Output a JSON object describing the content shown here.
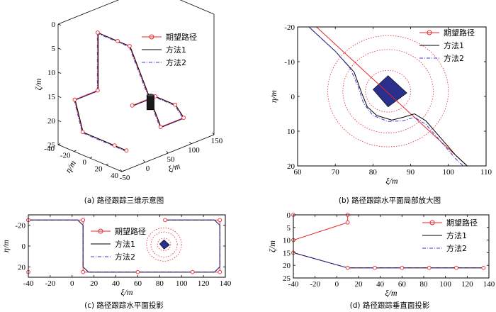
{
  "legend": {
    "desired": "期望路径",
    "method1": "方法1",
    "method2": "方法2"
  },
  "colors": {
    "desired": "#e8242a",
    "method1": "#000000",
    "method2": "#3b3bd6",
    "obstacle": "#2a2f8c"
  },
  "chart_data": [
    {
      "id": "a",
      "type": "line3d",
      "caption": "(a) 路径跟踪三维示意图",
      "xlabel": "ξ/m",
      "ylabel": "η/m",
      "zlabel": "ζ/m",
      "xticks": [
        -50,
        0,
        50,
        100,
        150
      ],
      "yticks": [
        -40,
        -20,
        0,
        20,
        40
      ],
      "zticks": [
        0,
        5,
        10,
        15,
        20,
        25
      ],
      "desired_path": [
        {
          "xi": -40,
          "eta": 40,
          "zeta": 21
        },
        {
          "xi": -40,
          "eta": 25,
          "zeta": 21
        },
        {
          "xi": -40,
          "eta": -15,
          "zeta": 21
        },
        {
          "xi": -40,
          "eta": -25,
          "zeta": 15
        },
        {
          "xi": 10,
          "eta": -25,
          "zeta": 15
        },
        {
          "xi": 10,
          "eta": -25,
          "zeta": 3
        },
        {
          "xi": 10,
          "eta": 0,
          "zeta": 3
        },
        {
          "xi": 10,
          "eta": 15,
          "zeta": 3
        },
        {
          "xi": 60,
          "eta": 25,
          "zeta": 21
        },
        {
          "xi": 110,
          "eta": 25,
          "zeta": 21
        },
        {
          "xi": 135,
          "eta": 0,
          "zeta": 21
        },
        {
          "xi": 135,
          "eta": -25,
          "zeta": 21
        },
        {
          "xi": 85,
          "eta": -25,
          "zeta": 21
        }
      ]
    },
    {
      "id": "b",
      "type": "line",
      "caption": "(b) 路径跟踪水平面局部放大图",
      "xlabel": "ξ/m",
      "ylabel": "η/m",
      "xlim": [
        60,
        110
      ],
      "ylim": [
        -20,
        20
      ],
      "y_inverted": true,
      "xticks": [
        60,
        70,
        80,
        90,
        100,
        110
      ],
      "yticks": [
        -20,
        -10,
        0,
        10,
        20
      ],
      "desired_path": [
        {
          "x": 60,
          "y": -25
        },
        {
          "x": 110,
          "y": 25
        }
      ],
      "method1": [
        {
          "x": 63,
          "y": -20
        },
        {
          "x": 70,
          "y": -13
        },
        {
          "x": 75,
          "y": -7
        },
        {
          "x": 77,
          "y": -1
        },
        {
          "x": 78.5,
          "y": 3
        },
        {
          "x": 81,
          "y": 5.5
        },
        {
          "x": 85,
          "y": 6.8
        },
        {
          "x": 88,
          "y": 6
        },
        {
          "x": 91,
          "y": 5
        },
        {
          "x": 94,
          "y": 7
        },
        {
          "x": 98,
          "y": 12
        },
        {
          "x": 102,
          "y": 17
        },
        {
          "x": 105,
          "y": 20
        }
      ],
      "method2": [
        {
          "x": 63,
          "y": -20
        },
        {
          "x": 70,
          "y": -13
        },
        {
          "x": 74,
          "y": -8
        },
        {
          "x": 76,
          "y": -3
        },
        {
          "x": 77.5,
          "y": 2
        },
        {
          "x": 80,
          "y": 5.5
        },
        {
          "x": 84,
          "y": 7.2
        },
        {
          "x": 88,
          "y": 7
        },
        {
          "x": 91,
          "y": 6
        },
        {
          "x": 94,
          "y": 8
        },
        {
          "x": 98,
          "y": 13
        },
        {
          "x": 102,
          "y": 18
        },
        {
          "x": 105,
          "y": 21
        }
      ],
      "obstacle": [
        {
          "x": 80,
          "y": -2
        },
        {
          "x": 84,
          "y": -6
        },
        {
          "x": 89,
          "y": -1
        },
        {
          "x": 84,
          "y": 3
        }
      ],
      "safety_circles": [
        {
          "cx": 84,
          "cy": -1.5,
          "r": 6
        },
        {
          "cx": 84,
          "cy": -1.5,
          "r": 12
        },
        {
          "cx": 84,
          "cy": -1.5,
          "r": 16
        }
      ]
    },
    {
      "id": "c",
      "type": "line",
      "caption": "(c) 路径跟踪水平面投影",
      "xlabel": "ξ/m",
      "ylabel": "η/m",
      "xlim": [
        -40,
        140
      ],
      "ylim": [
        -30,
        30
      ],
      "y_inverted": true,
      "xticks": [
        -40,
        -20,
        0,
        20,
        40,
        60,
        80,
        100,
        120,
        140
      ],
      "yticks": [
        -20,
        0,
        20
      ],
      "desired_path": [
        {
          "x": -40,
          "y": 25
        },
        {
          "x": -40,
          "y": -25
        },
        {
          "x": 10,
          "y": -25
        },
        {
          "x": 10,
          "y": 25
        },
        {
          "x": 60,
          "y": 25
        },
        {
          "x": 110,
          "y": 25
        },
        {
          "x": 135,
          "y": 25
        },
        {
          "x": 135,
          "y": -25
        },
        {
          "x": 85,
          "y": -25
        }
      ],
      "method1": [
        {
          "x": -40,
          "y": 25
        },
        {
          "x": -40,
          "y": -25
        },
        {
          "x": 5,
          "y": -25
        },
        {
          "x": 10,
          "y": -20
        },
        {
          "x": 10,
          "y": 20
        },
        {
          "x": 15,
          "y": 25
        },
        {
          "x": 60,
          "y": 25
        },
        {
          "x": 130,
          "y": 25
        },
        {
          "x": 135,
          "y": 20
        },
        {
          "x": 135,
          "y": -20
        },
        {
          "x": 130,
          "y": -25
        },
        {
          "x": 85,
          "y": -25
        }
      ],
      "method2": [
        {
          "x": -40,
          "y": 25
        },
        {
          "x": -40,
          "y": -25
        },
        {
          "x": 5,
          "y": -25
        },
        {
          "x": 10,
          "y": -20
        },
        {
          "x": 10,
          "y": 20
        },
        {
          "x": 15,
          "y": 25
        },
        {
          "x": 60,
          "y": 25
        },
        {
          "x": 130,
          "y": 25
        },
        {
          "x": 135,
          "y": 20
        },
        {
          "x": 135,
          "y": -20
        },
        {
          "x": 130,
          "y": -25
        },
        {
          "x": 85,
          "y": -25
        }
      ],
      "obstacle": [
        {
          "x": 80,
          "y": -2
        },
        {
          "x": 84,
          "y": -6
        },
        {
          "x": 89,
          "y": -1
        },
        {
          "x": 84,
          "y": 3
        }
      ],
      "safety_circles": [
        {
          "cx": 84,
          "cy": -1.5,
          "r": 6
        },
        {
          "cx": 84,
          "cy": -1.5,
          "r": 12
        },
        {
          "cx": 84,
          "cy": -1.5,
          "r": 16
        }
      ]
    },
    {
      "id": "d",
      "type": "line",
      "caption": "(d) 路径跟踪垂直面投影",
      "xlabel": "ξ/m",
      "ylabel": "ζ/m",
      "xlim": [
        -40,
        140
      ],
      "ylim": [
        0,
        25
      ],
      "y_inverted": true,
      "xticks": [
        -40,
        -20,
        0,
        20,
        40,
        60,
        80,
        100,
        120,
        140
      ],
      "yticks": [
        0,
        5,
        10,
        15,
        20,
        25
      ],
      "desired_path": [
        {
          "x": -40,
          "y": 15
        },
        {
          "x": 10,
          "y": 21
        },
        {
          "x": 35,
          "y": 21
        },
        {
          "x": 60,
          "y": 21
        },
        {
          "x": 85,
          "y": 21
        },
        {
          "x": 110,
          "y": 21
        },
        {
          "x": 135,
          "y": 21
        }
      ],
      "desired_path_2": [
        {
          "x": -40,
          "y": 10
        },
        {
          "x": 10,
          "y": 3
        },
        {
          "x": 10,
          "y": 0
        },
        {
          "x": -40,
          "y": 0
        }
      ],
      "method1": [
        {
          "x": -40,
          "y": 15
        },
        {
          "x": 10,
          "y": 21
        },
        {
          "x": 135,
          "y": 21
        }
      ],
      "method2": [
        {
          "x": -40,
          "y": 15
        },
        {
          "x": 10,
          "y": 21
        },
        {
          "x": 135,
          "y": 21
        }
      ]
    }
  ]
}
